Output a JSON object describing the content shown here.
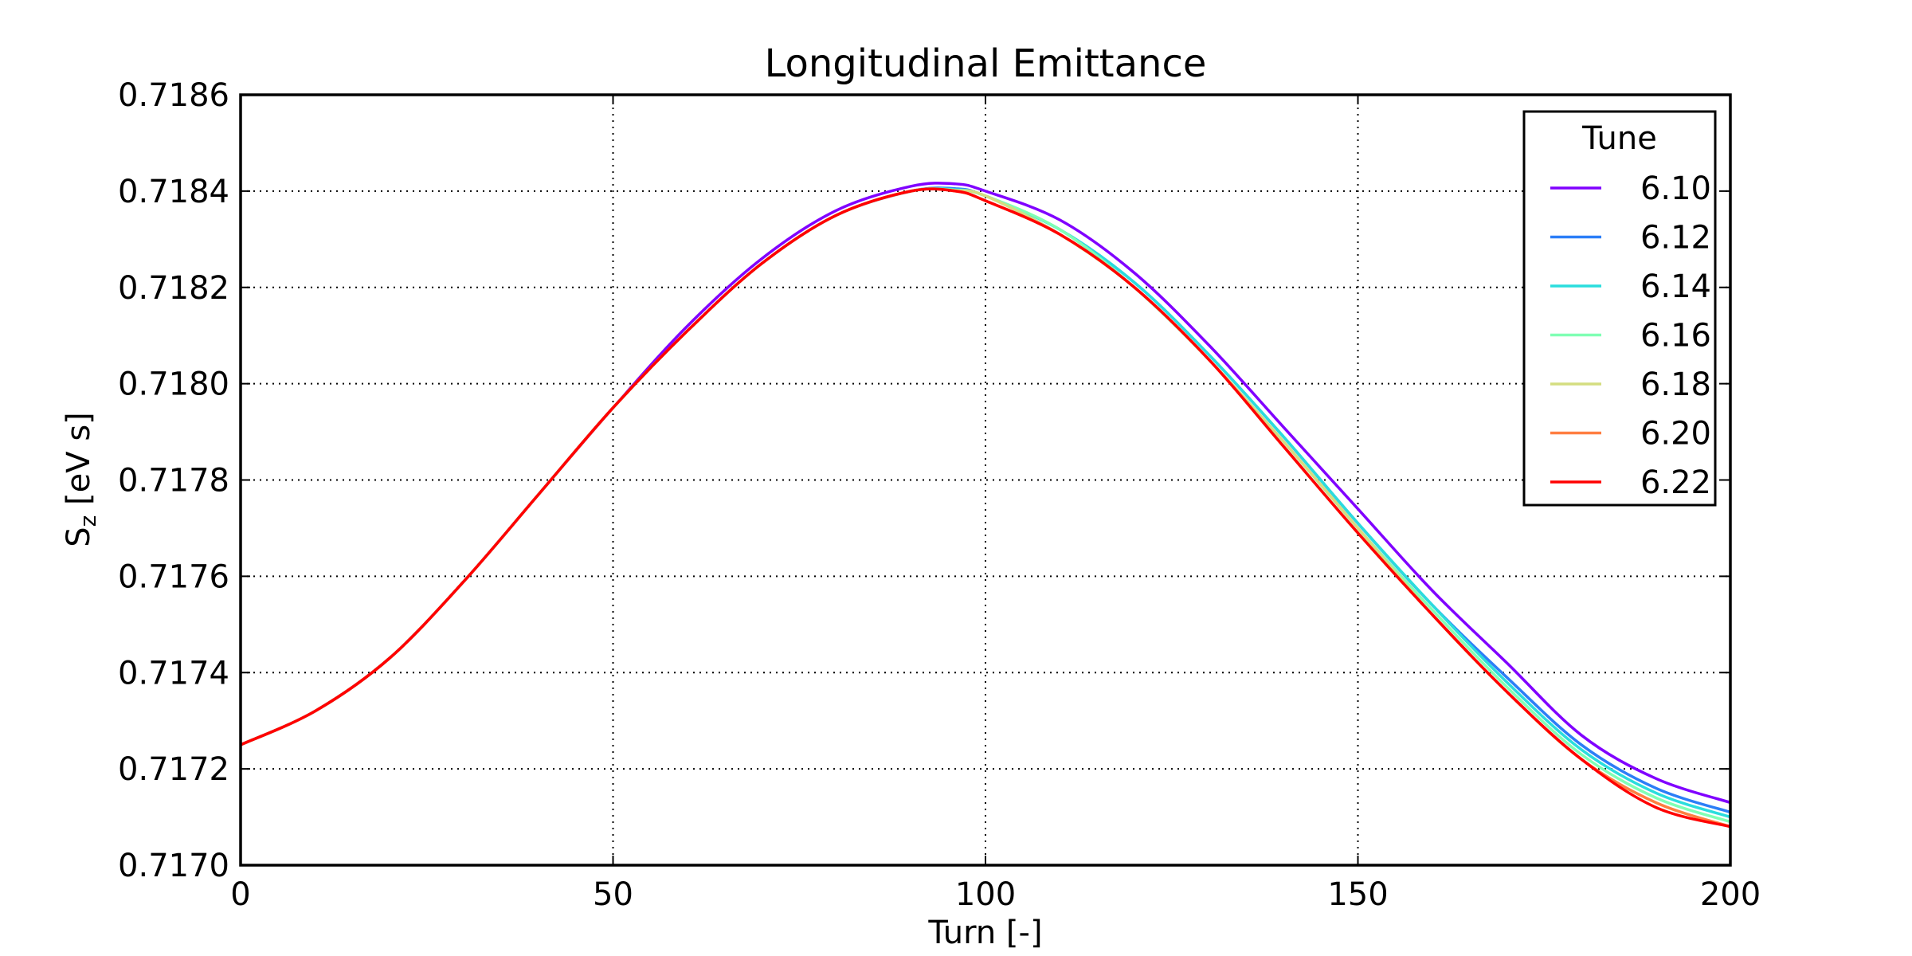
{
  "chart_data": {
    "type": "line",
    "title": "Longitudinal Emittance",
    "xlabel": "Turn [-]",
    "ylabel_main": "S",
    "ylabel_sub": "z",
    "ylabel_rest": " [eV s]",
    "xlim": [
      0,
      200
    ],
    "ylim": [
      0.717,
      0.7186
    ],
    "xticks": [
      0,
      50,
      100,
      150,
      200
    ],
    "xtick_labels": [
      "0",
      "50",
      "100",
      "150",
      "200"
    ],
    "yticks": [
      0.717,
      0.7172,
      0.7174,
      0.7176,
      0.7178,
      0.718,
      0.7182,
      0.7184,
      0.7186
    ],
    "ytick_labels": [
      "0.7170",
      "0.7172",
      "0.7174",
      "0.7176",
      "0.7178",
      "0.7180",
      "0.7182",
      "0.7184",
      "0.7186"
    ],
    "grid": true,
    "legend_title": "Tune",
    "legend_position": "top-right",
    "x": [
      0,
      10,
      20,
      30,
      40,
      50,
      60,
      70,
      80,
      90,
      96,
      100,
      110,
      120,
      130,
      140,
      150,
      160,
      170,
      180,
      190,
      200
    ],
    "series": [
      {
        "name": "6.10",
        "color": "#8000ff",
        "values": [
          0.71725,
          0.71732,
          0.71743,
          0.71759,
          0.71777,
          0.71795,
          0.71812,
          0.71826,
          0.71836,
          0.71841,
          0.718415,
          0.7184,
          0.71834,
          0.71823,
          0.71808,
          0.71791,
          0.71774,
          0.71757,
          0.71742,
          0.71727,
          0.71718,
          0.71713
        ]
      },
      {
        "name": "6.12",
        "color": "#2c7ef7",
        "values": [
          0.71725,
          0.71732,
          0.71743,
          0.71759,
          0.71777,
          0.71795,
          0.71811,
          0.71825,
          0.71835,
          0.7184,
          0.718405,
          0.71839,
          0.71832,
          0.71821,
          0.71806,
          0.71789,
          0.71771,
          0.71754,
          0.71739,
          0.71725,
          0.71716,
          0.71711
        ]
      },
      {
        "name": "6.14",
        "color": "#2adddd",
        "values": [
          0.71725,
          0.71732,
          0.71743,
          0.71759,
          0.71777,
          0.71795,
          0.71811,
          0.71825,
          0.71835,
          0.7184,
          0.718403,
          0.71839,
          0.71832,
          0.71821,
          0.71806,
          0.71789,
          0.71771,
          0.71754,
          0.71738,
          0.71724,
          0.71715,
          0.7171
        ]
      },
      {
        "name": "6.16",
        "color": "#80ffb4",
        "values": [
          0.71725,
          0.71732,
          0.71743,
          0.71759,
          0.71777,
          0.71795,
          0.71811,
          0.71825,
          0.71835,
          0.7184,
          0.718402,
          0.71839,
          0.71832,
          0.7182,
          0.71805,
          0.71788,
          0.7177,
          0.71753,
          0.71737,
          0.71723,
          0.71714,
          0.71709
        ]
      },
      {
        "name": "6.18",
        "color": "#d4dd80",
        "values": [
          0.71725,
          0.71732,
          0.71743,
          0.71759,
          0.71777,
          0.71795,
          0.71811,
          0.71825,
          0.71835,
          0.7184,
          0.718401,
          0.71839,
          0.71831,
          0.7182,
          0.71805,
          0.71788,
          0.7177,
          0.71752,
          0.71736,
          0.71722,
          0.71713,
          0.71708
        ]
      },
      {
        "name": "6.20",
        "color": "#ff7e41",
        "values": [
          0.71725,
          0.71732,
          0.71743,
          0.71759,
          0.71777,
          0.71795,
          0.71811,
          0.71825,
          0.71835,
          0.7184,
          0.7184,
          0.71838,
          0.71831,
          0.7182,
          0.71805,
          0.71787,
          0.71769,
          0.71752,
          0.71736,
          0.71722,
          0.71713,
          0.71708
        ]
      },
      {
        "name": "6.22",
        "color": "#ff0000",
        "values": [
          0.71725,
          0.71732,
          0.71743,
          0.71759,
          0.71777,
          0.71795,
          0.71811,
          0.71825,
          0.71835,
          0.7184,
          0.7184,
          0.71838,
          0.71831,
          0.7182,
          0.71805,
          0.71787,
          0.71769,
          0.71752,
          0.71736,
          0.71722,
          0.71712,
          0.71708
        ]
      }
    ]
  }
}
